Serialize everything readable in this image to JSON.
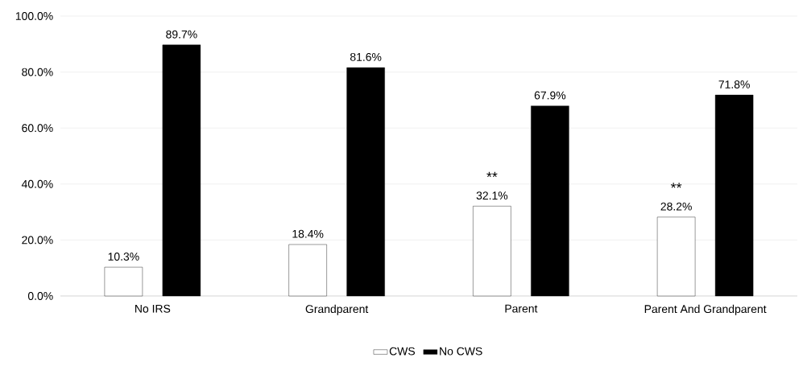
{
  "chart_data": {
    "type": "bar",
    "categories": [
      "No IRS",
      "Grandparent",
      "Parent",
      "Parent And Grandparent"
    ],
    "series": [
      {
        "name": "CWS",
        "color": "#ffffff",
        "values": [
          10.3,
          18.4,
          32.1,
          28.2
        ],
        "value_labels": [
          "10.3%",
          "18.4%",
          "32.1%",
          "28.2%"
        ]
      },
      {
        "name": "No CWS",
        "color": "#000000",
        "values": [
          89.7,
          81.6,
          67.9,
          71.8
        ],
        "value_labels": [
          "89.7%",
          "81.6%",
          "67.9%",
          "71.8%"
        ]
      }
    ],
    "ylim": [
      0,
      100
    ],
    "yticks": [
      {
        "value": 0,
        "label": "0.0%"
      },
      {
        "value": 20,
        "label": "20.0%"
      },
      {
        "value": 40,
        "label": "40.0%"
      },
      {
        "value": 60,
        "label": "60.0%"
      },
      {
        "value": 80,
        "label": "80.0%"
      },
      {
        "value": 100,
        "label": "100.0%"
      }
    ],
    "grid": "y",
    "legend": "bottom",
    "annotations": [
      "**",
      "**"
    ]
  }
}
